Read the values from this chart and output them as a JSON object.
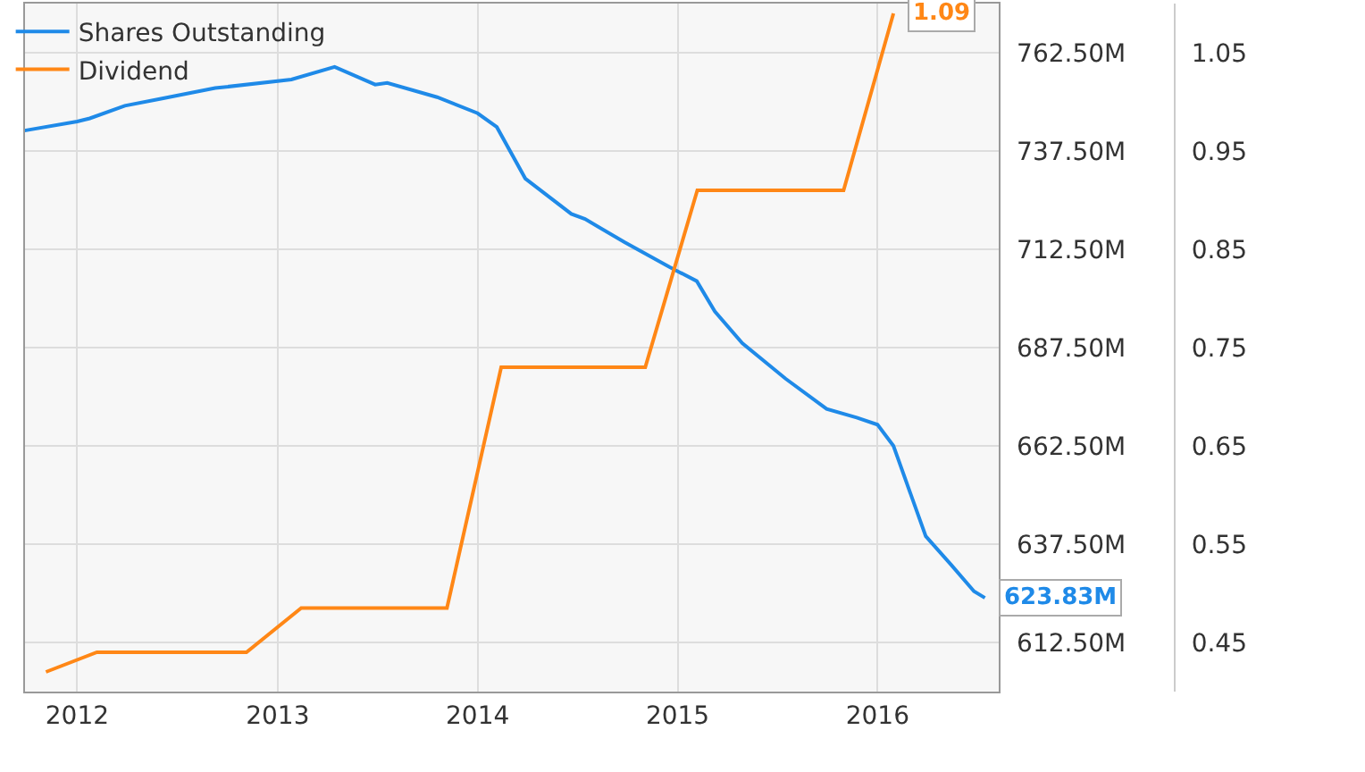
{
  "chart_data": {
    "type": "line",
    "xlim": [
      "2011-09-27",
      "2016-08-10"
    ],
    "xticks": [
      "2012",
      "2013",
      "2014",
      "2015",
      "2016"
    ],
    "ylim": [
      600,
      775
    ],
    "yticks": [
      {
        "value": 612.5,
        "label": "612.50M"
      },
      {
        "value": 637.5,
        "label": "637.50M"
      },
      {
        "value": 662.5,
        "label": "662.50M"
      },
      {
        "value": 687.5,
        "label": "687.50M"
      },
      {
        "value": 712.5,
        "label": "712.50M"
      },
      {
        "value": 737.5,
        "label": "737.50M"
      },
      {
        "value": 762.5,
        "label": "762.50M"
      }
    ],
    "y2lim": [
      0.4,
      1.1
    ],
    "y2ticks": [
      0.45,
      0.55,
      0.65,
      0.75,
      0.85,
      0.95,
      1.05
    ],
    "grid": true,
    "legend": "top left",
    "series": [
      {
        "name": "Shares Outstanding",
        "color": "#1f8ae8",
        "x": [
          "2011-09-27",
          "2012-01-01",
          "2012-01-24",
          "2012-03-28",
          "2012-06-02",
          "2012-09-09",
          "2013-01-26",
          "2013-04-15",
          "2013-06-28",
          "2013-07-20",
          "2013-10-19",
          "2014-01-01",
          "2014-02-05",
          "2014-03-29",
          "2014-06-21",
          "2014-07-16",
          "2014-09-26",
          "2014-12-17",
          "2015-02-05",
          "2015-03-10",
          "2015-04-29",
          "2015-07-17",
          "2015-09-30",
          "2015-11-24",
          "2016-01-01",
          "2016-01-30",
          "2016-03-29",
          "2016-05-14",
          "2016-06-25",
          "2016-07-15"
        ],
        "values": [
          742.7,
          745.0,
          745.8,
          749.0,
          750.8,
          753.5,
          755.7,
          758.9,
          754.4,
          754.8,
          751.2,
          747.1,
          743.6,
          730.5,
          721.5,
          720.2,
          714.3,
          708.0,
          704.4,
          696.7,
          688.6,
          679.6,
          671.9,
          669.7,
          667.9,
          662.5,
          639.5,
          632.3,
          625.5,
          623.83
        ],
        "value_labels": [
          null,
          null,
          null,
          null,
          null,
          null,
          null,
          null,
          null,
          null,
          null,
          null,
          null,
          null,
          null,
          null,
          null,
          null,
          null,
          null,
          null,
          null,
          null,
          null,
          null,
          null,
          null,
          null,
          null,
          "623.83M"
        ]
      },
      {
        "name": "Dividend",
        "color": "#ff8716",
        "axis": "y2",
        "x": [
          "2011-11-05",
          "2012-02-06",
          "2012-11-05",
          "2013-02-13",
          "2013-11-06",
          "2014-02-13",
          "2014-11-03",
          "2015-02-06",
          "2015-10-31",
          "2016-01-30"
        ],
        "values": [
          0.42,
          0.44,
          0.44,
          0.485,
          0.485,
          0.73,
          0.73,
          0.91,
          0.91,
          1.09
        ],
        "value_labels": [
          null,
          null,
          null,
          null,
          null,
          null,
          null,
          null,
          null,
          "1.09"
        ]
      }
    ]
  }
}
